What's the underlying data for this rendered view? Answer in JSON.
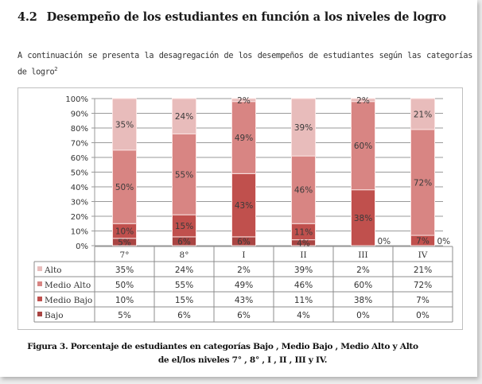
{
  "section": {
    "number": "4.2",
    "title": "Desempeño de los estudiantes en función a los niveles de logro",
    "intro_text": "A continuación se presenta la desagregación de los desempeños de estudiantes según las categorías de logro",
    "intro_footnote": "2"
  },
  "caption": {
    "line1": "Figura 3. Porcentaje de estudiantes en categorías Bajo , Medio Bajo , Medio Alto y Alto",
    "line2": "de el/los niveles  7° , 8° , I , II , III y IV."
  },
  "chart_data": {
    "type": "bar",
    "stacked": true,
    "percent": true,
    "title": "",
    "xlabel": "",
    "ylabel": "",
    "ylim": [
      0,
      100
    ],
    "yticks": [
      "0%",
      "10%",
      "20%",
      "30%",
      "40%",
      "50%",
      "60%",
      "70%",
      "80%",
      "90%",
      "100%"
    ],
    "grid": true,
    "legend_placement": "data-table-left",
    "categories": [
      "7°",
      "8°",
      "I",
      "II",
      "III",
      "IV"
    ],
    "series": [
      {
        "name": "Bajo",
        "color": "#a94442",
        "values": [
          5,
          6,
          6,
          4,
          0,
          0
        ],
        "labels": [
          "5%",
          "6%",
          "6%",
          "4%",
          "0%",
          "0%"
        ]
      },
      {
        "name": "Medio Bajo",
        "color": "#c0504d",
        "values": [
          10,
          15,
          43,
          11,
          38,
          7
        ],
        "labels": [
          "10%",
          "15%",
          "43%",
          "11%",
          "38%",
          "7%"
        ]
      },
      {
        "name": "Medio Alto",
        "color": "#d88583",
        "values": [
          50,
          55,
          49,
          46,
          60,
          72
        ],
        "labels": [
          "50%",
          "55%",
          "49%",
          "46%",
          "60%",
          "72%"
        ]
      },
      {
        "name": "Alto",
        "color": "#e8bcbb",
        "values": [
          35,
          24,
          2,
          39,
          2,
          21
        ],
        "labels": [
          "35%",
          "24%",
          "2%",
          "39%",
          "2%",
          "21%"
        ]
      }
    ],
    "table_row_order": [
      "Alto",
      "Medio Alto",
      "Medio Bajo",
      "Bajo"
    ]
  }
}
